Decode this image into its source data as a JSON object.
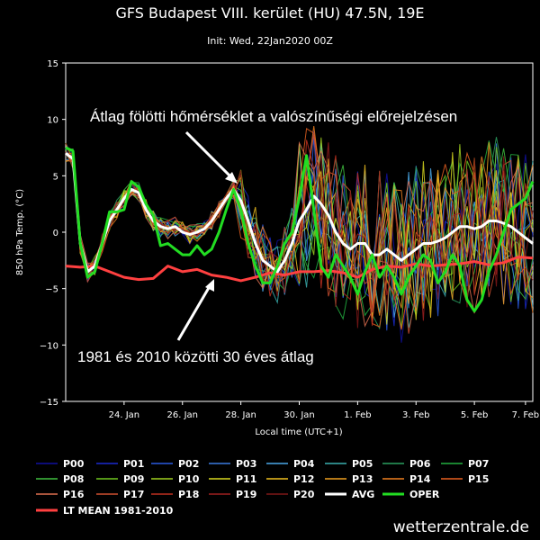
{
  "watermark": "wetterzentrale.de",
  "chart_data": {
    "type": "line",
    "title": "GFS Budapest VIII. kerület (HU) 47.5N, 19E",
    "subtitle": "Init: Wed, 22Jan2020 00Z",
    "xlabel": "Local time (UTC+1)",
    "ylabel": "850 hPa Temp. (°C)",
    "ylim": [
      -15,
      15
    ],
    "xlim": [
      0,
      64
    ],
    "x_unit_note": "",
    "yticks": [
      "15",
      "10",
      "5",
      "0",
      "−5",
      "−10",
      "−15"
    ],
    "xticks": [
      {
        "x": 8,
        "label": "24. Jan"
      },
      {
        "x": 16,
        "label": "26. Jan"
      },
      {
        "x": 24,
        "label": "28. Jan"
      },
      {
        "x": 32,
        "label": "30. Jan"
      },
      {
        "x": 40,
        "label": "1. Feb"
      },
      {
        "x": 48,
        "label": "3. Feb"
      },
      {
        "x": 56,
        "label": "5. Feb"
      },
      {
        "x": 63,
        "label": "7. Feb"
      }
    ],
    "annotations": [
      {
        "text": "Átlag fölötti hőmérséklet a valószínűségi előrejelzésen"
      },
      {
        "text": "1981 és 2010 közötti 30 éves átlag"
      }
    ],
    "legend": {
      "placement": "bottom",
      "entries": [
        {
          "name": "P00",
          "color": "#1010a0"
        },
        {
          "name": "P01",
          "color": "#1a2ad0"
        },
        {
          "name": "P02",
          "color": "#2a5ae0"
        },
        {
          "name": "P03",
          "color": "#3a7ae0"
        },
        {
          "name": "P04",
          "color": "#4aa8e8"
        },
        {
          "name": "P05",
          "color": "#3ab0b0"
        },
        {
          "name": "P06",
          "color": "#2aa060"
        },
        {
          "name": "P07",
          "color": "#22b040"
        },
        {
          "name": "P08",
          "color": "#40c040"
        },
        {
          "name": "P09",
          "color": "#70c820"
        },
        {
          "name": "P10",
          "color": "#a0d020"
        },
        {
          "name": "P11",
          "color": "#d8d820"
        },
        {
          "name": "P12",
          "color": "#f0c020"
        },
        {
          "name": "P13",
          "color": "#f0a020"
        },
        {
          "name": "P14",
          "color": "#f08020"
        },
        {
          "name": "P15",
          "color": "#e86020"
        },
        {
          "name": "P16",
          "color": "#e07050"
        },
        {
          "name": "P17",
          "color": "#d05030"
        },
        {
          "name": "P18",
          "color": "#c03020"
        },
        {
          "name": "P19",
          "color": "#a02020"
        },
        {
          "name": "P20",
          "color": "#801818"
        },
        {
          "name": "AVG",
          "color": "#ffffff"
        },
        {
          "name": "OPER",
          "color": "#22dd22"
        },
        {
          "name": "LT MEAN 1981-2010",
          "color": "#ff4040"
        }
      ]
    },
    "series": [
      {
        "key": "oper",
        "name": "OPER",
        "color": "#22dd22",
        "x": [
          0,
          1,
          2,
          3,
          4,
          5,
          6,
          7,
          8,
          9,
          10,
          11,
          12,
          13,
          14,
          15,
          16,
          17,
          18,
          19,
          20,
          21,
          22,
          23,
          24,
          25,
          26,
          27,
          28,
          29,
          30,
          31,
          32,
          33,
          34,
          35,
          36,
          37,
          38,
          39,
          40,
          41,
          42,
          43,
          44,
          45,
          46,
          47,
          48,
          49,
          50,
          51,
          52,
          53,
          54,
          55,
          56,
          57,
          58,
          59,
          60,
          61,
          62,
          63,
          64
        ],
        "values": [
          7.5,
          7.2,
          -1,
          -4,
          -3.5,
          -1,
          1.8,
          1.8,
          2,
          4.5,
          4,
          2.5,
          1.5,
          -1.2,
          -1,
          -1.5,
          -2,
          -2,
          -1.2,
          -2,
          -1.5,
          0,
          2,
          3.8,
          2,
          -1,
          -3,
          -4.5,
          -4.5,
          -3,
          -1,
          0,
          3,
          6.8,
          2,
          -3,
          -4,
          -2,
          -3,
          -4,
          -5.5,
          -3.5,
          -2,
          -4,
          -3,
          -4,
          -5.5,
          -4,
          -3,
          -2,
          -2.5,
          -4.5,
          -3.5,
          -2,
          -3,
          -6,
          -7,
          -6,
          -3.5,
          -2,
          0,
          2,
          2.5,
          3,
          4.5
        ]
      },
      {
        "key": "avg",
        "name": "AVG",
        "color": "#ffffff",
        "x": [
          0,
          1,
          2,
          3,
          4,
          5,
          6,
          7,
          8,
          9,
          10,
          11,
          12,
          13,
          14,
          15,
          16,
          17,
          18,
          19,
          20,
          21,
          22,
          23,
          24,
          25,
          26,
          27,
          28,
          29,
          30,
          31,
          32,
          33,
          34,
          35,
          36,
          37,
          38,
          39,
          40,
          41,
          42,
          43,
          44,
          45,
          46,
          47,
          48,
          49,
          50,
          51,
          52,
          53,
          54,
          55,
          56,
          57,
          58,
          59,
          60,
          61,
          62,
          63,
          64
        ],
        "values": [
          7,
          6.5,
          -1,
          -3.5,
          -3,
          -1,
          1,
          2,
          3,
          3.8,
          3.5,
          2,
          1,
          0.5,
          0.3,
          0.5,
          0,
          -0.2,
          0,
          0.3,
          1,
          2,
          3,
          3.8,
          2.8,
          1,
          -1,
          -2.5,
          -3,
          -3.5,
          -2.5,
          -1,
          1,
          2,
          3.2,
          2.5,
          1.5,
          0,
          -1,
          -1.5,
          -1,
          -1,
          -2,
          -2,
          -1.5,
          -2,
          -2.5,
          -2,
          -1.5,
          -1,
          -1,
          -0.8,
          -0.5,
          0,
          0.5,
          0.5,
          0.3,
          0.5,
          1,
          1,
          0.8,
          0.5,
          0,
          -0.5,
          -1
        ]
      },
      {
        "key": "ltmean",
        "name": "LT MEAN 1981-2010",
        "color": "#ff4040",
        "x": [
          0,
          2,
          4,
          6,
          8,
          10,
          12,
          14,
          16,
          18,
          20,
          22,
          24,
          26,
          28,
          30,
          32,
          34,
          36,
          38,
          40,
          42,
          44,
          46,
          48,
          50,
          52,
          54,
          56,
          58,
          60,
          62,
          64
        ],
        "values": [
          -3,
          -3.1,
          -3,
          -3.5,
          -4,
          -4.2,
          -4.1,
          -3,
          -3.5,
          -3.3,
          -3.8,
          -4,
          -4.3,
          -4,
          -3.6,
          -3.8,
          -3.5,
          -3.5,
          -3.4,
          -3.6,
          -4,
          -3.3,
          -3,
          -3.1,
          -2.8,
          -3,
          -2.9,
          -2.8,
          -2.6,
          -2.9,
          -2.7,
          -2.2,
          -2.3
        ]
      }
    ],
    "ensemble": [
      {
        "name": "P01",
        "color": "#1a2ad0",
        "values": [
          7,
          6.5,
          -1,
          -3.5,
          -3,
          -1,
          1,
          2,
          3,
          3.8,
          3.5,
          2,
          1,
          0.5,
          0.3,
          0.5,
          0,
          -0.2,
          0,
          0.3,
          1,
          2,
          3,
          3.8,
          2.8,
          1,
          -1,
          -2.5,
          -3,
          -3.5,
          -2.5,
          -1,
          1,
          2,
          3.2,
          2.5,
          1.5,
          0,
          -1,
          -1.5,
          -1,
          -1,
          -2,
          -2,
          -1.5,
          -2,
          -2.5,
          -2,
          -1.5,
          -1,
          -1,
          -0.8,
          -0.5,
          0,
          0.5,
          0.5,
          0.3,
          0.5,
          1,
          1,
          0.8,
          0.5,
          0,
          -0.5,
          -1
        ]
      }
    ]
  }
}
